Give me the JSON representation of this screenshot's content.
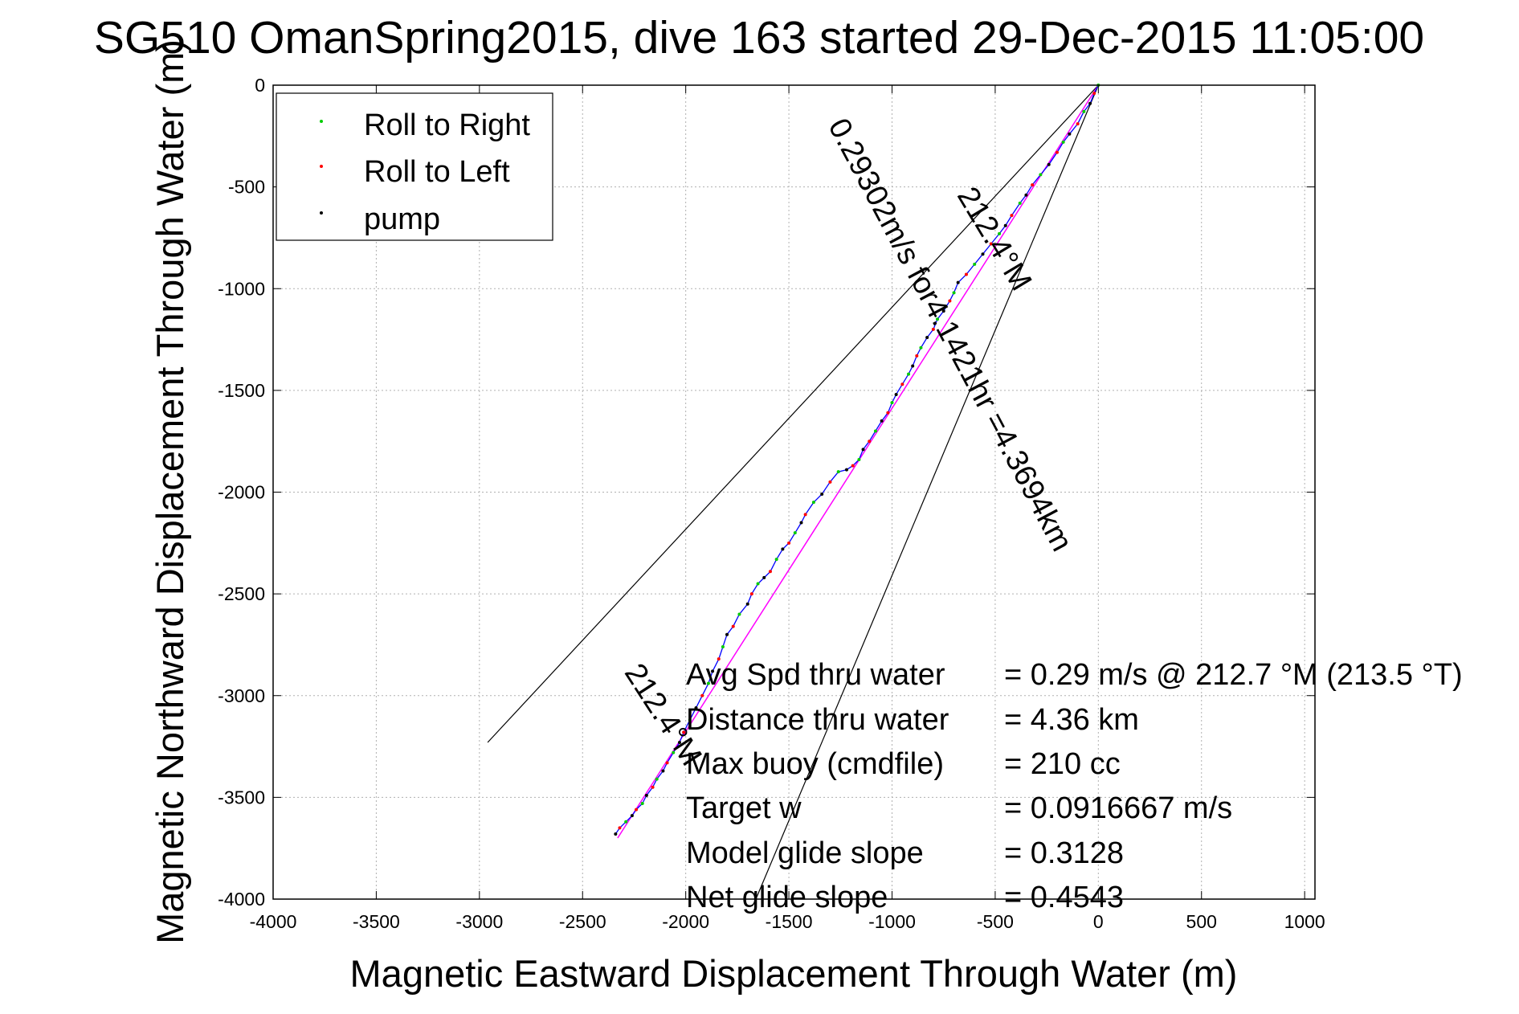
{
  "chart_data": {
    "type": "line",
    "title": "SG510 OmanSpring2015, dive 163 started 29-Dec-2015 11:05:00",
    "xlabel": "Magnetic Eastward Displacement Through Water (m)",
    "ylabel": "Magnetic Northward Displacement Through Water (m)",
    "xlim": [
      -4000,
      1050
    ],
    "ylim": [
      -4000,
      0
    ],
    "xticks": [
      -4000,
      -3500,
      -3000,
      -2500,
      -2000,
      -1500,
      -1000,
      -500,
      0,
      500,
      1000
    ],
    "yticks": [
      0,
      -500,
      -1000,
      -1500,
      -2000,
      -2500,
      -3000,
      -3500,
      -4000
    ],
    "xtick_labels": [
      "-4000",
      "-3500",
      "-3000",
      "-2500",
      "-2000",
      "-1500",
      "-1000",
      "-500",
      "0",
      "500",
      "1000"
    ],
    "ytick_labels": [
      "0",
      "-500",
      "-1000",
      "-1500",
      "-2000",
      "-2500",
      "-3000",
      "-3500",
      "-4000"
    ],
    "grid": true,
    "legend_position": "top-left",
    "legend": [
      "Roll to Right",
      "Roll to Left",
      "pump"
    ],
    "colors": {
      "track": "#0000ff",
      "roll_right": "#00cc00",
      "roll_left": "#ff0000",
      "pump": "#000000",
      "mean_line": "#ff00ff",
      "cone": "#000000",
      "grid": "#b0b0b0"
    },
    "track": {
      "x": [
        0,
        -20,
        -40,
        -70,
        -100,
        -140,
        -170,
        -200,
        -240,
        -280,
        -320,
        -350,
        -380,
        -420,
        -450,
        -480,
        -520,
        -560,
        -600,
        -640,
        -680,
        -700,
        -720,
        -750,
        -780,
        -800,
        -830,
        -860,
        -880,
        -900,
        -920,
        -950,
        -980,
        -1000,
        -1020,
        -1050,
        -1080,
        -1110,
        -1140,
        -1160,
        -1190,
        -1220,
        -1260,
        -1300,
        -1340,
        -1380,
        -1420,
        -1440,
        -1470,
        -1500,
        -1530,
        -1560,
        -1590,
        -1620,
        -1650,
        -1680,
        -1700,
        -1740,
        -1770,
        -1800,
        -1820,
        -1840,
        -1870,
        -1890,
        -1920,
        -1950,
        -1980,
        -2010,
        -2030,
        -2060,
        -2090,
        -2110,
        -2140,
        -2160,
        -2190,
        -2210,
        -2240,
        -2260,
        -2290,
        -2320,
        -2340
      ],
      "y": [
        0,
        -40,
        -90,
        -130,
        -190,
        -240,
        -280,
        -330,
        -390,
        -440,
        -490,
        -540,
        -580,
        -640,
        -690,
        -730,
        -780,
        -830,
        -880,
        -930,
        -970,
        -1020,
        -1060,
        -1110,
        -1150,
        -1200,
        -1240,
        -1290,
        -1330,
        -1380,
        -1420,
        -1470,
        -1520,
        -1560,
        -1610,
        -1650,
        -1700,
        -1750,
        -1790,
        -1840,
        -1870,
        -1890,
        -1900,
        -1950,
        -2010,
        -2050,
        -2110,
        -2150,
        -2200,
        -2250,
        -2280,
        -2330,
        -2390,
        -2420,
        -2450,
        -2500,
        -2550,
        -2600,
        -2660,
        -2700,
        -2760,
        -2820,
        -2880,
        -2940,
        -3000,
        -3060,
        -3120,
        -3180,
        -3230,
        -3280,
        -3330,
        -3370,
        -3410,
        -3450,
        -3490,
        -3530,
        -3560,
        -3590,
        -3620,
        -3650,
        -3680
      ]
    },
    "mean_line": {
      "x": [
        0,
        -2330
      ],
      "y": [
        0,
        -3700
      ]
    },
    "cone_left": {
      "x": [
        0,
        -2960
      ],
      "y": [
        0,
        -3230
      ]
    },
    "cone_right": {
      "x": [
        0,
        -1660
      ],
      "y": [
        0,
        -4000
      ]
    },
    "annotations": [
      {
        "text": "0.29302m/s for4.1421hr =4.3694km",
        "x": -760,
        "y": -1250,
        "angle": 62
      },
      {
        "text": "212.4°M",
        "x": -545,
        "y": -780,
        "angle": 59
      },
      {
        "text": "212.4°M",
        "x": -2150,
        "y": -3120,
        "angle": 57
      }
    ],
    "stats": [
      {
        "label": "Avg Spd thru water",
        "value": "=  0.29 m/s @ 212.7 °M (213.5 °T)"
      },
      {
        "label": "Distance thru water",
        "value": "=  4.36 km"
      },
      {
        "label": "Max buoy (cmdfile)",
        "value": "= 210 cc"
      },
      {
        "label": "Target w",
        "value": "= 0.0916667 m/s"
      },
      {
        "label": "Model glide slope",
        "value": "= 0.3128"
      },
      {
        "label": "Net glide slope",
        "value": "= 0.4543"
      }
    ]
  }
}
